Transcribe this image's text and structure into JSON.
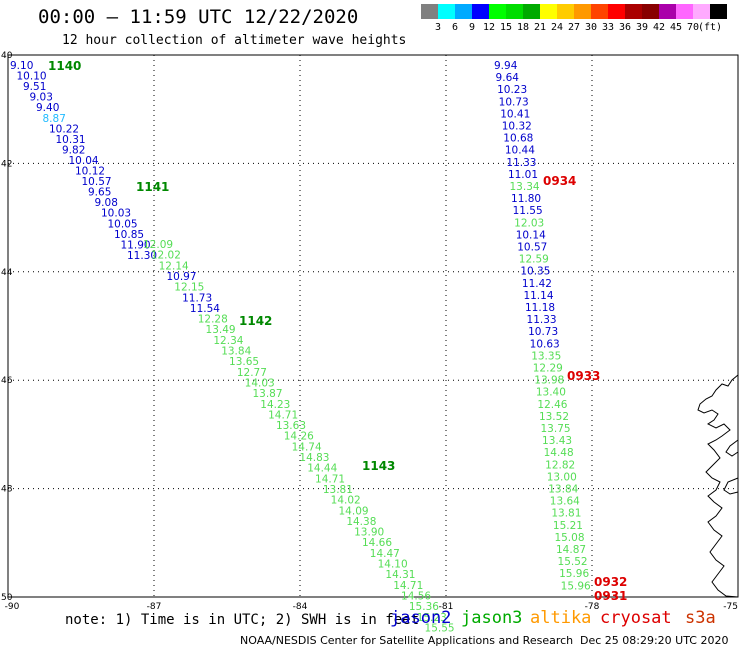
{
  "header": {
    "title": "00:00 – 11:59 UTC 12/22/2020",
    "subtitle": "12 hour collection of altimeter wave heights"
  },
  "scale": {
    "unit": "(ft)",
    "colors": [
      "#808080",
      "#00ffff",
      "#00aaff",
      "#0000ff",
      "#00ff00",
      "#00dd00",
      "#00aa00",
      "#ffff00",
      "#ffcc00",
      "#ff9900",
      "#ff4400",
      "#ff0000",
      "#aa0000",
      "#880000",
      "#aa00aa",
      "#ff66ff",
      "#ffaaff",
      "#000000"
    ],
    "labels": [
      "3",
      "6",
      "9",
      "12",
      "15",
      "18",
      "21",
      "24",
      "27",
      "30",
      "33",
      "36",
      "39",
      "42",
      "45",
      "70"
    ]
  },
  "axes": {
    "x_ticks": [
      "-90",
      "-87",
      "-84",
      "-81",
      "-78",
      "-75"
    ],
    "y_ticks": [
      "40",
      "42",
      "44",
      "46",
      "48",
      "50"
    ]
  },
  "map_colors": {
    "jason2": "#0000cc",
    "jason3": "#55dd55",
    "altika": "#ff9900",
    "cryosat": "#dd0000",
    "s3a": "#cc3300",
    "track_time": "#008800"
  },
  "tracks": [
    {
      "mission": "jason2",
      "values": [
        "9.10",
        "10.10",
        "9.51",
        "9.03",
        "9.40",
        "8.87",
        "10.22",
        "10.31",
        "9.82",
        "10.04",
        "10.12",
        "10.57",
        "9.65",
        "9.08",
        "10.03",
        "10.05",
        "10.85",
        "11.90",
        "11.30"
      ],
      "colors": [
        "jason2",
        "jason2",
        "jason2",
        "jason2",
        "jason2",
        "cyan",
        "jason2",
        "jason2",
        "jason2",
        "jason2",
        "jason2",
        "jason2",
        "jason2",
        "jason2",
        "jason2",
        "jason2",
        "jason2",
        "jason2",
        "jason2"
      ]
    },
    {
      "mission": "jason3",
      "values": [
        "12.09",
        "12.02",
        "12.14",
        "10.97",
        "12.15",
        "11.73",
        "11.54",
        "12.28",
        "13.49",
        "12.34",
        "13.84",
        "13.65",
        "12.77",
        "14.03",
        "13.87",
        "14.23",
        "14.71",
        "13.63",
        "14.26",
        "14.74",
        "14.83",
        "14.44",
        "14.71",
        "13.81",
        "14.02",
        "14.09",
        "14.38",
        "13.90",
        "14.66",
        "14.47",
        "14.10",
        "14.31",
        "14.71",
        "14.56",
        "15.36",
        "15.23",
        "15.55"
      ],
      "colors": [
        "jason3",
        "jason3",
        "jason3",
        "jason2",
        "jason3",
        "jason2",
        "jason2",
        "jason3",
        "jason3",
        "jason3",
        "jason3",
        "jason3",
        "jason3",
        "jason3",
        "jason3",
        "jason3",
        "jason3",
        "jason3",
        "jason3",
        "jason3",
        "jason3",
        "jason3",
        "jason3",
        "jason3",
        "jason3",
        "jason3",
        "jason3",
        "jason3",
        "jason3",
        "jason3",
        "jason3",
        "jason3",
        "jason3",
        "jason3",
        "jason3",
        "jason3",
        "jason3"
      ]
    },
    {
      "mission": "east",
      "values": [
        "9.94",
        "9.64",
        "10.23",
        "10.73",
        "10.41",
        "10.32",
        "10.68",
        "10.44",
        "11.33",
        "11.01",
        "13.34",
        "11.80",
        "11.55",
        "12.03",
        "10.14",
        "10.57",
        "12.59",
        "10.35",
        "11.42",
        "11.14",
        "11.18",
        "11.33",
        "10.73",
        "10.63",
        "13.35",
        "12.29",
        "13.98",
        "13.40",
        "12.46",
        "13.52",
        "13.75",
        "13.43",
        "14.48",
        "12.82",
        "13.00",
        "13.84",
        "13.64",
        "13.81",
        "15.21",
        "15.08",
        "14.87",
        "15.52",
        "15.96",
        "15.96"
      ],
      "colors": [
        "jason2",
        "jason2",
        "jason2",
        "jason2",
        "jason2",
        "jason2",
        "jason2",
        "jason2",
        "jason2",
        "jason2",
        "jason3",
        "jason2",
        "jason2",
        "jason3",
        "jason2",
        "jason2",
        "jason3",
        "jason2",
        "jason2",
        "jason2",
        "jason2",
        "jason2",
        "jason2",
        "jason2",
        "jason3",
        "jason3",
        "jason3",
        "jason3",
        "jason3",
        "jason3",
        "jason3",
        "jason3",
        "jason3",
        "jason3",
        "jason3",
        "jason3",
        "jason3",
        "jason3",
        "jason3",
        "jason3",
        "jason3",
        "jason3",
        "jason3",
        "jason3"
      ]
    }
  ],
  "time_labels": [
    {
      "text": "1140",
      "color": "track_time"
    },
    {
      "text": "1141",
      "color": "track_time"
    },
    {
      "text": "1142",
      "color": "track_time"
    },
    {
      "text": "1143",
      "color": "track_time"
    },
    {
      "text": "0934",
      "color": "cryosat"
    },
    {
      "text": "0933",
      "color": "cryosat"
    },
    {
      "text": "0932",
      "color": "cryosat"
    },
    {
      "text": "0931",
      "color": "cryosat"
    }
  ],
  "footer": {
    "note": "note: 1) Time is in UTC; 2) SWH is in feet",
    "missions": [
      "jason2",
      "jason3",
      "altika",
      "cryosat",
      "s3a"
    ],
    "credit": "NOAA/NESDIS Center for Satellite Applications and Research",
    "stamp": "Dec 25 08:29:20 UTC 2020"
  }
}
